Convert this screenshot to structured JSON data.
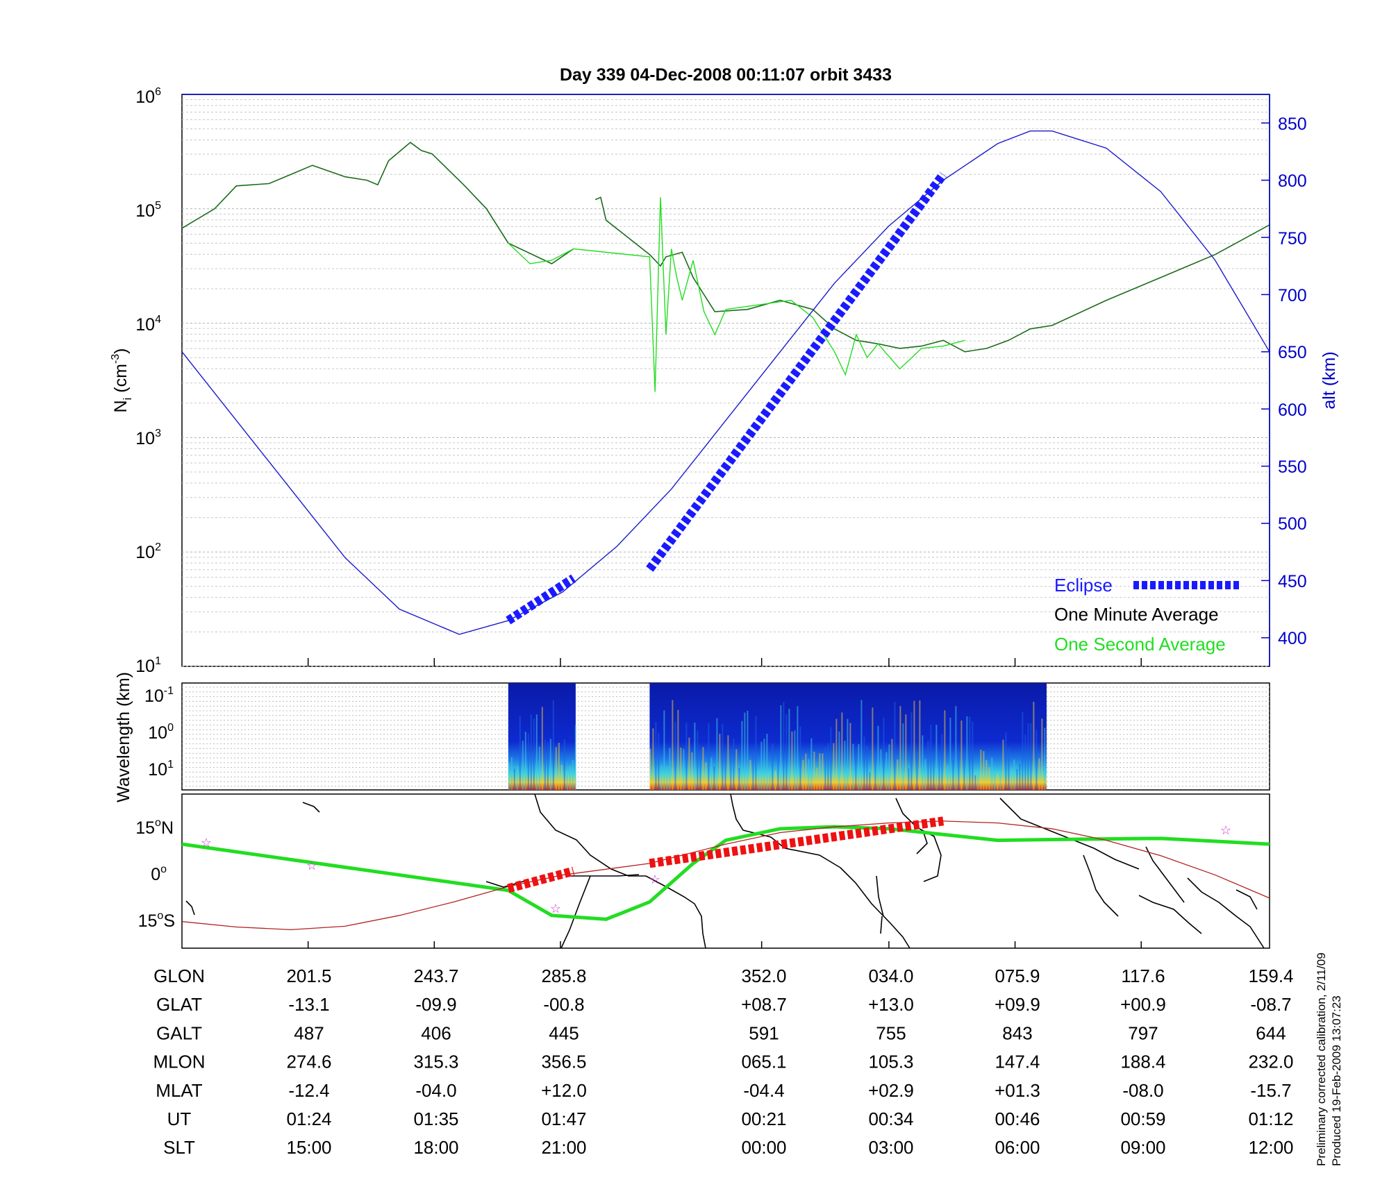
{
  "title": "Day 339  04-Dec-2008 00:11:07   orbit 3433",
  "top_panel": {
    "ylabel": "N",
    "ylabel_sub": "i",
    "ylabel_unit": " (cm",
    "ylabel_unit_exp": "-3",
    "ylabel_unit_close": ")",
    "yticks": [
      {
        "base": "10",
        "exp": "1"
      },
      {
        "base": "10",
        "exp": "2"
      },
      {
        "base": "10",
        "exp": "3"
      },
      {
        "base": "10",
        "exp": "4"
      },
      {
        "base": "10",
        "exp": "5"
      },
      {
        "base": "10",
        "exp": "6"
      }
    ],
    "ylabel_right": "alt (km)",
    "yticks_right": [
      "400",
      "450",
      "500",
      "550",
      "600",
      "650",
      "700",
      "750",
      "800",
      "850"
    ],
    "legend": [
      {
        "label": "Eclipse",
        "color": "#1a1aff"
      },
      {
        "label": "One Minute Average",
        "color": "#000000"
      },
      {
        "label": "One Second Average",
        "color": "#22dd22"
      }
    ]
  },
  "mid_panel": {
    "ylabel": "Wavelength (km)",
    "yticks": [
      {
        "base": "10",
        "exp": "-1"
      },
      {
        "base": "10",
        "exp": "0"
      },
      {
        "base": "10",
        "exp": "1"
      }
    ]
  },
  "map_panel": {
    "yticks": [
      {
        "num": "15",
        "deg": "o",
        "hemi": "N"
      },
      {
        "num": "0",
        "deg": "o",
        "hemi": ""
      },
      {
        "num": "15",
        "deg": "o",
        "hemi": "S"
      }
    ]
  },
  "table": {
    "rows": [
      {
        "label": "GLON",
        "values": [
          "201.5",
          "243.7",
          "285.8",
          "352.0",
          "034.0",
          "075.9",
          "117.6",
          "159.4"
        ]
      },
      {
        "label": "GLAT",
        "values": [
          "-13.1",
          "-09.9",
          "-00.8",
          "+08.7",
          "+13.0",
          "+09.9",
          "+00.9",
          "-08.7"
        ]
      },
      {
        "label": "GALT",
        "values": [
          "487",
          "406",
          "445",
          "591",
          "755",
          "843",
          "797",
          "644"
        ]
      },
      {
        "label": "MLON",
        "values": [
          "274.6",
          "315.3",
          "356.5",
          "065.1",
          "105.3",
          "147.4",
          "188.4",
          "232.0"
        ]
      },
      {
        "label": "MLAT",
        "values": [
          "-12.4",
          "-04.0",
          "+12.0",
          "-04.4",
          "+02.9",
          "+01.3",
          "-08.0",
          "-15.7"
        ]
      },
      {
        "label": "UT",
        "values": [
          "01:24",
          "01:35",
          "01:47",
          "00:21",
          "00:34",
          "00:46",
          "00:59",
          "01:12"
        ]
      },
      {
        "label": "SLT",
        "values": [
          "15:00",
          "18:00",
          "21:00",
          "00:00",
          "03:00",
          "06:00",
          "09:00",
          "12:00"
        ]
      }
    ]
  },
  "side_notes": {
    "line1": "Preliminary corrected calibration, 2/11/09",
    "line2": "Produced 19-Feb-2009 13:07:23"
  },
  "chart_data": {
    "type": "line",
    "x_kind": "SLT",
    "x_ticks_slt": [
      "15:00",
      "18:00",
      "21:00",
      "00:00",
      "03:00",
      "06:00",
      "09:00",
      "12:00"
    ],
    "density_log10_range": [
      1,
      6
    ],
    "altitude_range_km": [
      375,
      875
    ],
    "series": [
      {
        "name": "One Minute Average",
        "color": "#1a6b1a",
        "x_frac": [
          0.0,
          0.03,
          0.05,
          0.08,
          0.1,
          0.12,
          0.15,
          0.17,
          0.18,
          0.19,
          0.21,
          0.22,
          0.23,
          0.26,
          0.28,
          0.3,
          0.34,
          0.36,
          0.37,
          0.38,
          0.385,
          0.39,
          0.43,
          0.44,
          0.445,
          0.46,
          0.47,
          0.49,
          0.52,
          0.55,
          0.58,
          0.6,
          0.62,
          0.64,
          0.66,
          0.68,
          0.7,
          0.72,
          0.74,
          0.76,
          0.78,
          0.8,
          0.85,
          0.9,
          0.95,
          1.0
        ],
        "log10_density": [
          4.83,
          5.0,
          5.2,
          5.22,
          5.3,
          5.38,
          5.28,
          5.25,
          5.21,
          5.42,
          5.58,
          5.51,
          5.48,
          5.2,
          5.0,
          4.7,
          4.52,
          4.65,
          null,
          5.08,
          5.1,
          4.9,
          4.6,
          4.5,
          4.58,
          4.62,
          4.4,
          4.1,
          4.12,
          4.2,
          4.12,
          3.95,
          3.85,
          3.82,
          3.78,
          3.8,
          3.85,
          3.75,
          3.78,
          3.85,
          3.95,
          3.98,
          4.2,
          4.4,
          4.6,
          4.86
        ]
      },
      {
        "name": "One Second Average",
        "color": "#22dd22",
        "x_frac": [
          0.3,
          0.32,
          0.34,
          0.36,
          0.43,
          0.435,
          0.44,
          0.445,
          0.45,
          0.455,
          0.46,
          0.47,
          0.48,
          0.49,
          0.5,
          0.56,
          0.58,
          0.6,
          0.61,
          0.62,
          0.63,
          0.64,
          0.66,
          0.68,
          0.7,
          0.72
        ],
        "log10_density": [
          4.7,
          4.52,
          4.55,
          4.65,
          4.58,
          3.4,
          5.1,
          3.9,
          4.65,
          4.4,
          4.2,
          4.55,
          4.1,
          3.9,
          4.12,
          4.2,
          4.05,
          3.75,
          3.55,
          3.9,
          3.7,
          3.82,
          3.6,
          3.78,
          3.8,
          3.85
        ]
      },
      {
        "name": "Altitude",
        "color": "#1a1acc",
        "x_frac": [
          0.0,
          0.05,
          0.1,
          0.15,
          0.2,
          0.255,
          0.3,
          0.35,
          0.4,
          0.45,
          0.5,
          0.55,
          0.6,
          0.65,
          0.7,
          0.75,
          0.78,
          0.8,
          0.85,
          0.9,
          0.95,
          1.0
        ],
        "altitude_km": [
          650,
          590,
          530,
          470,
          425,
          403,
          415,
          440,
          480,
          530,
          590,
          650,
          710,
          760,
          800,
          832,
          843,
          843,
          828,
          790,
          730,
          650
        ]
      },
      {
        "name": "Eclipse",
        "color": "#1a1aff",
        "segments": [
          {
            "x_frac": [
              0.3,
              0.36
            ],
            "altitude_km": [
              415,
              452
            ]
          },
          {
            "x_frac": [
              0.43,
              0.7
            ],
            "altitude_km": [
              460,
              805
            ]
          }
        ]
      }
    ],
    "map": {
      "lat_range": [
        -20,
        20
      ],
      "ground_track": {
        "color": "#b22222",
        "x_frac": [
          0.0,
          0.05,
          0.1,
          0.15,
          0.2,
          0.25,
          0.3,
          0.35,
          0.43,
          0.5,
          0.55,
          0.6,
          0.65,
          0.7,
          0.75,
          0.8,
          0.85,
          0.9,
          0.95,
          1.0
        ],
        "lat": [
          -13.1,
          -14.5,
          -15.2,
          -14.3,
          -11.5,
          -8.0,
          -4.0,
          -1.0,
          2.0,
          7.0,
          10.0,
          11.5,
          12.5,
          13.0,
          12.5,
          11.0,
          8.0,
          4.0,
          -1.0,
          -7.0
        ]
      },
      "green_track": {
        "color": "#22dd22",
        "x_frac": [
          0.0,
          0.1,
          0.2,
          0.3,
          0.34,
          0.39,
          0.43,
          0.47,
          0.5,
          0.55,
          0.6,
          0.65,
          0.7,
          0.75,
          0.8,
          0.9,
          1.0
        ],
        "lat": [
          7.0,
          3.0,
          -1.0,
          -5.0,
          -11.5,
          -12.5,
          -8.0,
          2.0,
          8.0,
          11.0,
          11.5,
          11.0,
          9.5,
          8.0,
          8.2,
          8.5,
          7.0
        ]
      },
      "eclipse_segments": [
        {
          "x_frac": [
            0.3,
            0.36
          ],
          "lat": [
            -4.5,
            0.0
          ]
        },
        {
          "x_frac": [
            0.43,
            0.7
          ],
          "lat": [
            2.0,
            13.0
          ]
        }
      ]
    },
    "spectrogram": {
      "segments_x_frac": [
        [
          0.3,
          0.362
        ],
        [
          0.43,
          0.795
        ]
      ]
    }
  }
}
